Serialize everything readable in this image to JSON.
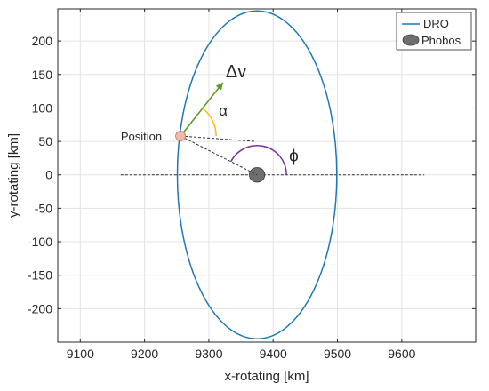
{
  "chart_data": {
    "type": "line",
    "title": "",
    "xlabel": "x-rotating [km]",
    "ylabel": "y-rotating [km]",
    "xlim": [
      9065,
      9715
    ],
    "ylim": [
      -250,
      248
    ],
    "xticks": [
      9100,
      9200,
      9300,
      9400,
      9500,
      9600
    ],
    "yticks": [
      200,
      150,
      100,
      50,
      0,
      -50,
      -100,
      -150,
      -200
    ],
    "grid": true,
    "legend_position": "top-right",
    "series": [
      {
        "name": "DRO",
        "kind": "ellipse",
        "color": "#1f77b4",
        "center": [
          9375,
          0
        ],
        "semi_axis_x": 124,
        "semi_axis_y": 245
      },
      {
        "name": "Phobos",
        "kind": "body",
        "color": "#6e6e6e",
        "center": [
          9375,
          0
        ],
        "semi_axis_x": 12,
        "semi_axis_y": 11
      }
    ],
    "reference_line": {
      "x_from": 9163,
      "x_to": 9635,
      "y": 0
    },
    "annotations": {
      "position_label": "Position",
      "position_point": [
        9256,
        58
      ],
      "position_color": "#f2b8a8",
      "dv_label": "Δv",
      "dv_tip": [
        9322,
        138
      ],
      "dv_color": "#5a9a2a",
      "alpha_label": "α",
      "alpha_color": "#f2c200",
      "phi_label": "ϕ",
      "phi_color": "#7b2fa0",
      "horizontal_guide_end": [
        9373,
        50
      ]
    }
  }
}
